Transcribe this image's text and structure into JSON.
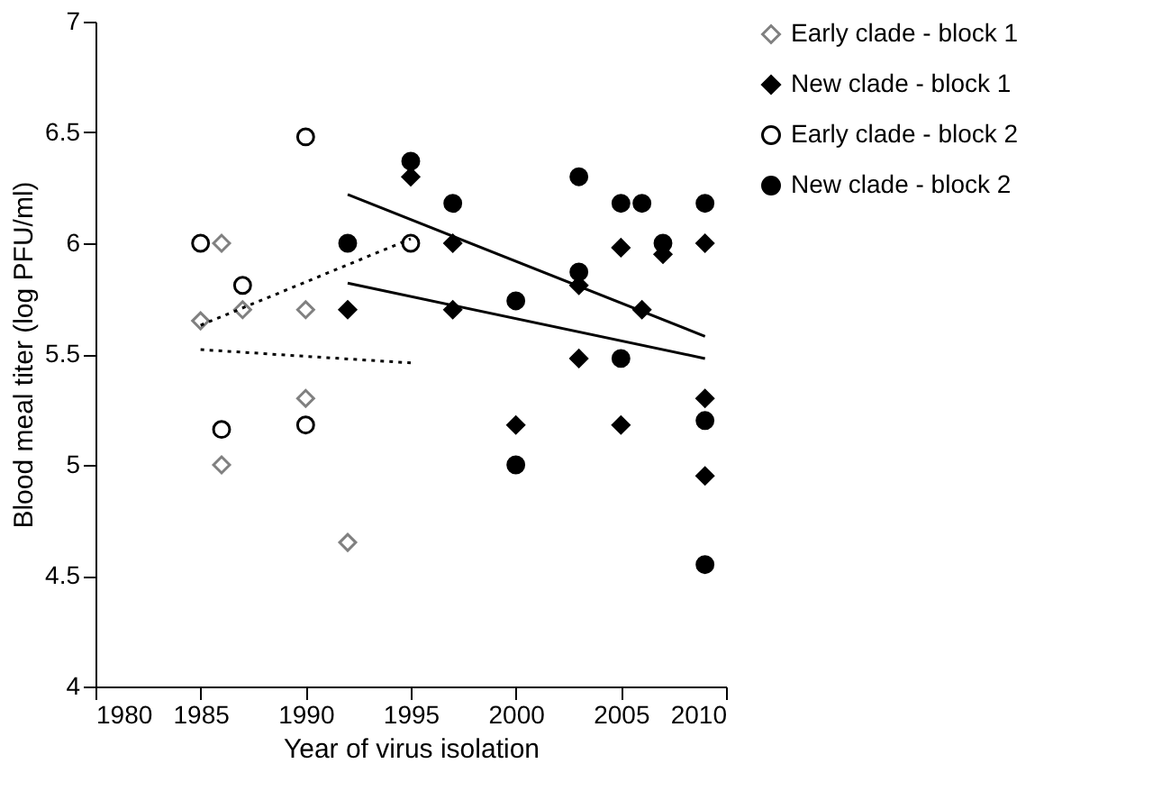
{
  "chart_data": {
    "type": "scatter",
    "xlabel": "Year of virus isolation",
    "ylabel": "Blood meal titer (log PFU/ml)",
    "xlim": [
      1980,
      2010
    ],
    "xticks": [
      1980,
      1985,
      1990,
      1995,
      2000,
      2005,
      2010
    ],
    "ylim": [
      4,
      7
    ],
    "yticks": [
      4,
      4.5,
      5,
      5.5,
      6,
      6.5,
      7
    ],
    "grid": false,
    "legend": "right",
    "series": [
      {
        "name": "Early clade - block 1",
        "color": "#808080",
        "marker": "diamond-open",
        "x": [
          1985,
          1986,
          1986,
          1987,
          1990,
          1990,
          1992
        ],
        "values": [
          5.65,
          6.0,
          5.0,
          5.7,
          5.7,
          5.3,
          4.65
        ]
      },
      {
        "name": "New clade - block 1",
        "color": "#000000",
        "marker": "diamond",
        "x": [
          1992,
          1995,
          1997,
          1997,
          2000,
          2003,
          2003,
          2005,
          2005,
          2006,
          2007,
          2009,
          2009,
          2009
        ],
        "values": [
          5.7,
          6.3,
          6.0,
          5.7,
          5.18,
          5.48,
          5.81,
          5.98,
          5.18,
          5.7,
          5.95,
          6.0,
          5.3,
          4.95
        ]
      },
      {
        "name": "Early clade - block 2",
        "color": "#000000",
        "marker": "circle-open",
        "x": [
          1985,
          1986,
          1987,
          1990,
          1990,
          1995
        ],
        "values": [
          6.0,
          5.16,
          5.81,
          6.48,
          5.18,
          6.0
        ]
      },
      {
        "name": "New clade - block 2",
        "color": "#000000",
        "marker": "circle",
        "x": [
          1992,
          1995,
          1997,
          2000,
          2000,
          2003,
          2003,
          2005,
          2006,
          2005,
          2007,
          2009,
          2009,
          2009
        ],
        "values": [
          6.0,
          6.37,
          6.18,
          5.74,
          5.0,
          6.3,
          5.87,
          6.18,
          6.18,
          5.48,
          6.0,
          6.18,
          5.2,
          4.55
        ]
      },
      {
        "type": "line",
        "color": "#000000",
        "line_style": "dotted",
        "x": [
          1985,
          1995
        ],
        "values": [
          5.63,
          6.02
        ]
      },
      {
        "type": "line",
        "color": "#000000",
        "line_style": "dotted",
        "x": [
          1985,
          1995
        ],
        "values": [
          5.52,
          5.46
        ]
      },
      {
        "type": "line",
        "color": "#000000",
        "line_style": "solid",
        "x": [
          1992,
          2009
        ],
        "values": [
          6.22,
          5.58
        ]
      },
      {
        "type": "line",
        "color": "#000000",
        "line_style": "solid",
        "x": [
          1992,
          2009
        ],
        "values": [
          5.82,
          5.48
        ]
      }
    ]
  }
}
